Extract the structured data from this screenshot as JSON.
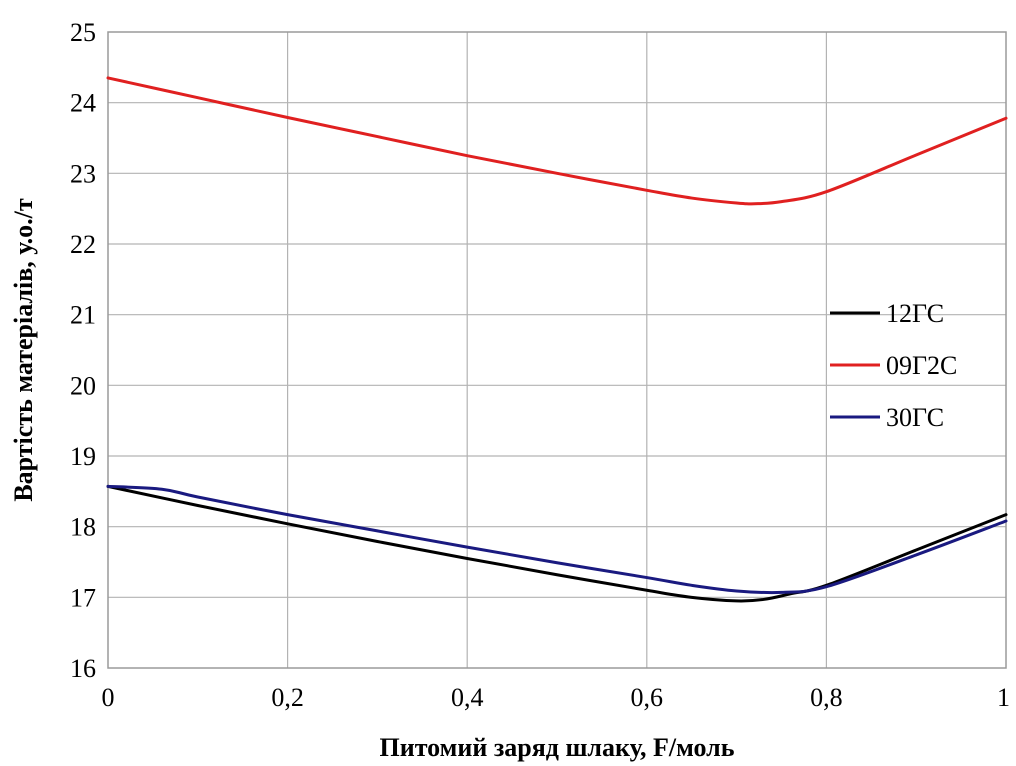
{
  "chart_data": {
    "type": "line",
    "title": "",
    "xlabel": "Питомий заряд шлаку, F/моль",
    "ylabel": "Вартість матеріалів, у.о./т",
    "xlim": [
      0,
      1
    ],
    "ylim": [
      16,
      25
    ],
    "x_ticks": [
      0,
      0.2,
      0.4,
      0.6,
      0.8,
      1
    ],
    "x_tick_labels": [
      "0",
      "0,2",
      "0,4",
      "0,6",
      "0,8",
      "1"
    ],
    "y_ticks": [
      16,
      17,
      18,
      19,
      20,
      21,
      22,
      23,
      24,
      25
    ],
    "y_tick_labels": [
      "16",
      "17",
      "18",
      "19",
      "20",
      "21",
      "22",
      "23",
      "24",
      "25"
    ],
    "grid": true,
    "legend_position": "right",
    "series": [
      {
        "name": "12ГС",
        "color": "#000000",
        "x": [
          0,
          0.1,
          0.2,
          0.3,
          0.4,
          0.5,
          0.6,
          0.65,
          0.7,
          0.73,
          0.76,
          0.8,
          0.9,
          1.0
        ],
        "y": [
          18.57,
          18.3,
          18.04,
          17.79,
          17.55,
          17.32,
          17.1,
          17.0,
          16.95,
          16.97,
          17.05,
          17.17,
          17.67,
          18.17
        ]
      },
      {
        "name": "09Г2С",
        "color": "#e02020",
        "x": [
          0,
          0.1,
          0.2,
          0.3,
          0.4,
          0.5,
          0.6,
          0.65,
          0.7,
          0.72,
          0.75,
          0.8,
          0.9,
          1.0
        ],
        "y": [
          24.35,
          24.07,
          23.79,
          23.52,
          23.25,
          23.0,
          22.76,
          22.65,
          22.58,
          22.57,
          22.6,
          22.74,
          23.26,
          23.78
        ]
      },
      {
        "name": "30ГС",
        "color": "#1a1a80",
        "x": [
          0,
          0.06,
          0.1,
          0.2,
          0.3,
          0.4,
          0.5,
          0.6,
          0.65,
          0.7,
          0.75,
          0.8,
          0.9,
          1.0
        ],
        "y": [
          18.57,
          18.53,
          18.42,
          18.17,
          17.94,
          17.71,
          17.49,
          17.28,
          17.17,
          17.09,
          17.07,
          17.15,
          17.6,
          18.08
        ]
      }
    ]
  }
}
